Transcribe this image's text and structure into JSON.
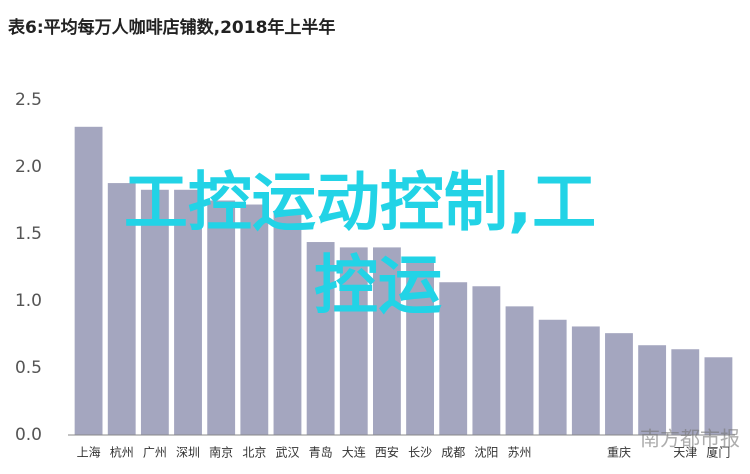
{
  "chart_data": {
    "type": "bar",
    "title": "表6:平均每万人咖啡店铺数,2018年上半年",
    "categories": [
      "上海",
      "杭州",
      "广州",
      "深圳",
      "南京",
      "北京",
      "武汉",
      "青岛",
      "大连",
      "西安",
      "长沙",
      "成都",
      "沈阳",
      "苏州",
      null,
      null,
      "重庆",
      null,
      "天津",
      "厦门"
    ],
    "values": [
      2.3,
      1.88,
      1.83,
      1.83,
      1.75,
      1.72,
      1.66,
      1.44,
      1.4,
      1.4,
      1.31,
      1.14,
      1.11,
      0.96,
      0.86,
      0.81,
      0.76,
      0.67,
      0.64,
      0.58
    ],
    "color": "#a4a6bf",
    "ylim": [
      0,
      2.5
    ],
    "yticks": [
      {
        "value": 0,
        "label": "0.0"
      },
      0.5,
      {
        "value": 1,
        "label": "1.0"
      },
      1.5,
      {
        "value": 2,
        "label": "2.0"
      },
      2.5
    ],
    "grid": false,
    "annotations": [
      "工控运动控制,工",
      "控运"
    ],
    "watermark": "南方都市报"
  }
}
